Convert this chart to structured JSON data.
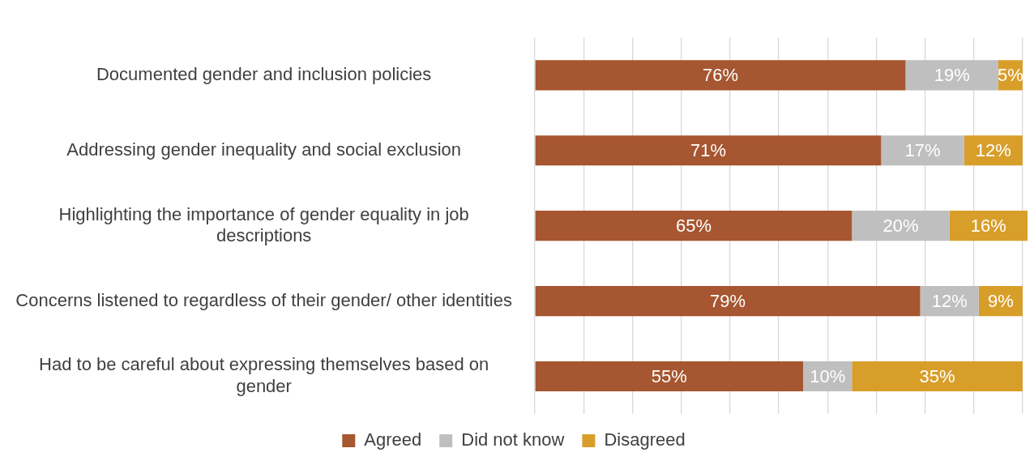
{
  "chart_data": {
    "type": "bar",
    "orientation": "horizontal",
    "stacked": true,
    "data_labels": true,
    "grid": "x",
    "legend": "bottom",
    "tick_labels": "y",
    "categories": [
      "Documented gender and inclusion policies",
      "Addressing gender inequality and social exclusion",
      "Highlighting the importance of gender equality in job descriptions",
      "Concerns listened to regardless of their gender/ other identities",
      "Had to be careful about expressing themselves based on gender"
    ],
    "xlim": [
      0,
      101
    ],
    "xticks": [
      {
        "value": 0,
        "label": null
      },
      {
        "value": 10,
        "label": null
      },
      {
        "value": 20,
        "label": null
      },
      {
        "value": 30,
        "label": null
      },
      {
        "value": 40,
        "label": null
      },
      {
        "value": 50,
        "label": null
      },
      {
        "value": 60,
        "label": null
      },
      {
        "value": 70,
        "label": null
      },
      {
        "value": 80,
        "label": null
      },
      {
        "value": 90,
        "label": null
      },
      {
        "value": 100,
        "label": null
      }
    ],
    "series": [
      {
        "name": "Agreed",
        "color": "#a65630",
        "values": [
          76,
          71,
          65,
          79,
          55
        ],
        "value_labels": [
          "76%",
          "71%",
          "65%",
          "79%",
          "55%"
        ]
      },
      {
        "name": "Did not know",
        "color": "#bfbfbf",
        "values": [
          19,
          17,
          20,
          12,
          10
        ],
        "value_labels": [
          "19%",
          "17%",
          "20%",
          "12%",
          "10%"
        ]
      },
      {
        "name": "Disagreed",
        "color": "#d89e2a",
        "values": [
          5,
          12,
          16,
          9,
          35
        ],
        "value_labels": [
          "5%",
          "12%",
          "16%",
          "9%",
          "35%"
        ]
      }
    ]
  }
}
